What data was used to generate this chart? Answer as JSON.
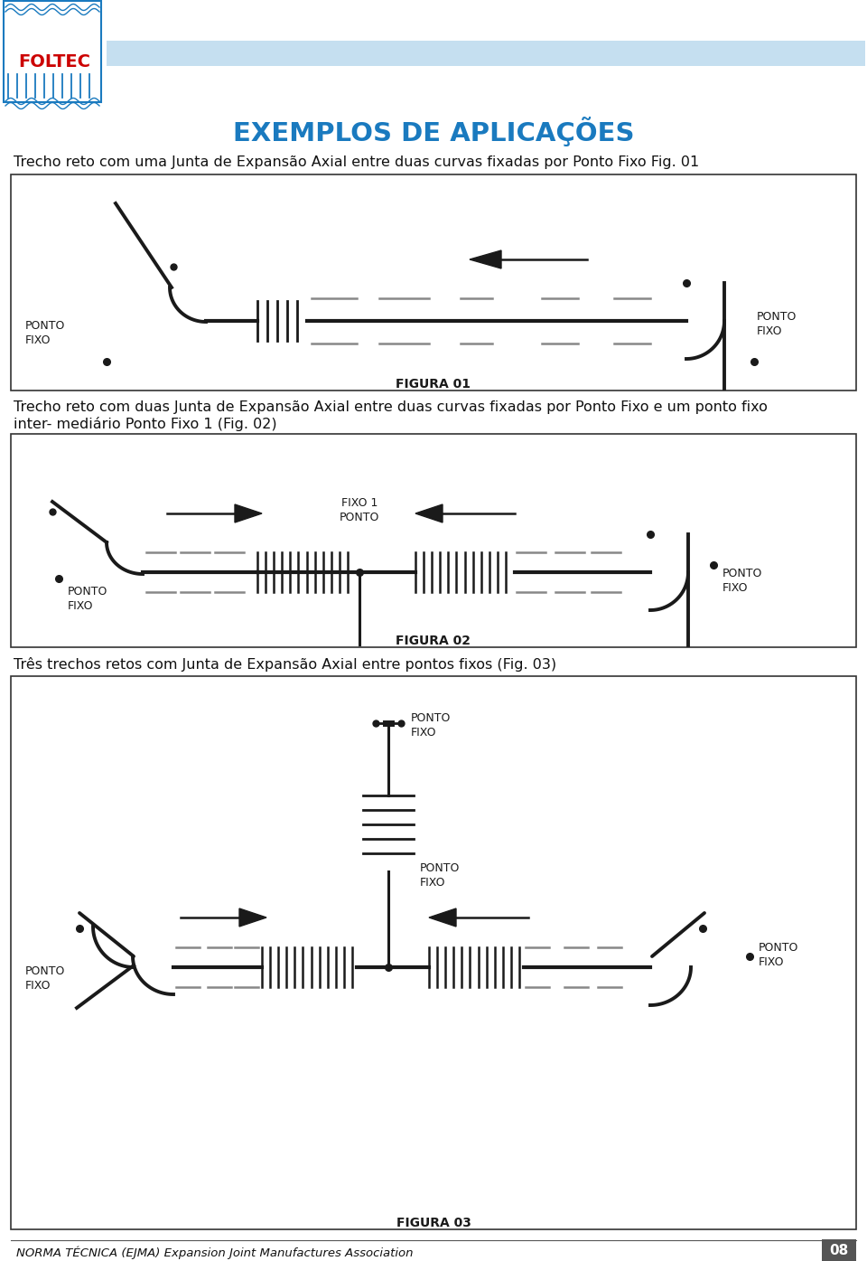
{
  "title": "EXEMPLOS DE APLICAÇÕES",
  "title_color": "#1a7abf",
  "bg_color": "#ffffff",
  "header_bar_color": "#c5dff0",
  "fig1_caption": "Trecho reto com uma Junta de Expansão Axial entre duas curvas fixadas por Ponto Fixo Fig. 01",
  "fig2_caption_l1": "Trecho reto com duas Junta de Expansão Axial entre duas curvas fixadas por Ponto Fixo e um ponto fixo",
  "fig2_caption_l2": "inter- mediário Ponto Fixo 1 (Fig. 02)",
  "fig3_caption": "Três trechos retos com Junta de Expansão Axial entre pontos fixos (Fig. 03)",
  "figura01_label": "FIGURA 01",
  "figura02_label": "FIGURA 02",
  "figura03_label": "FIGURA 03",
  "footer_text": "NORMA TÉCNICA (EJMA) Expansion Joint Manufactures Association",
  "page_num": "08",
  "line_color": "#1a1a1a",
  "dash_color": "#888888",
  "box_color": "#333333"
}
